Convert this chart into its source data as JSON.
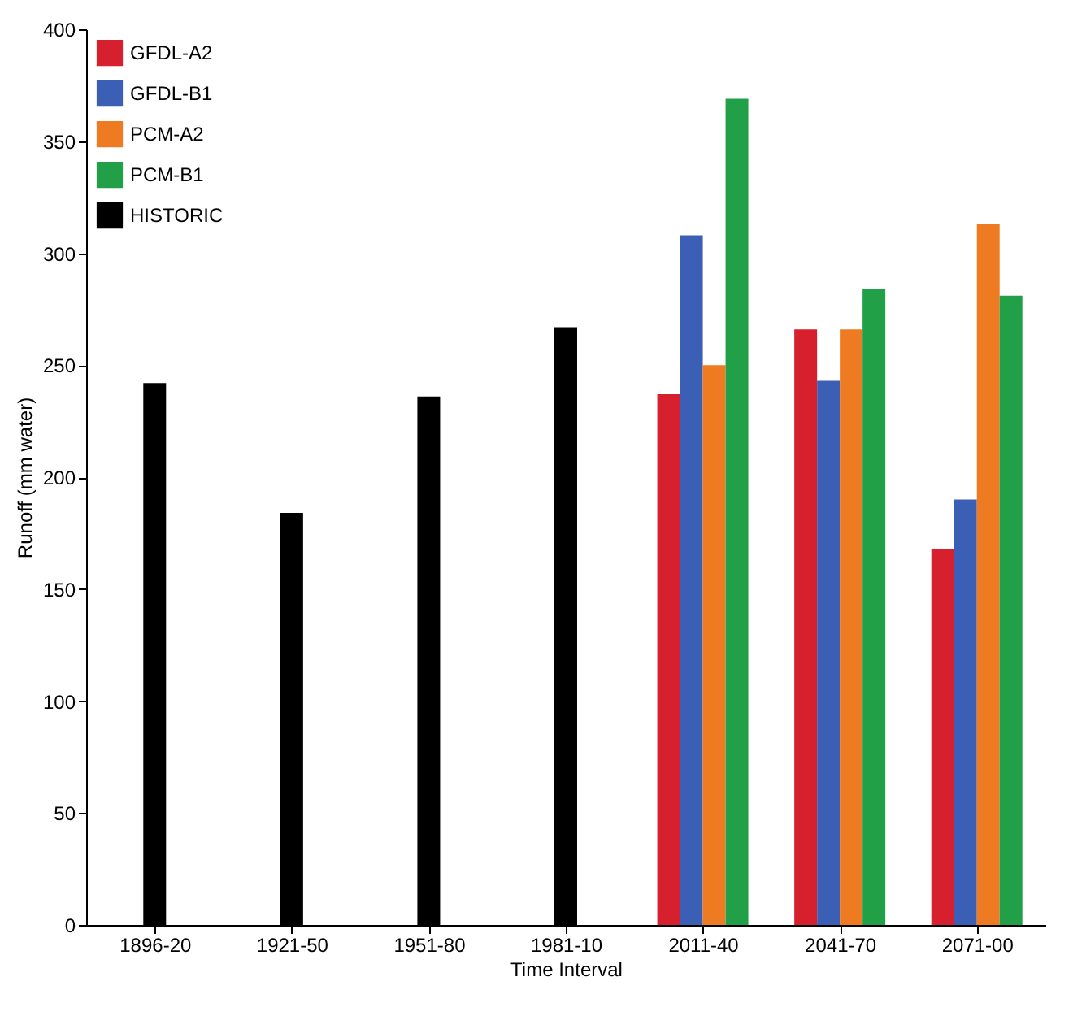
{
  "chart_data": {
    "type": "bar",
    "xlabel": "Time Interval",
    "ylabel": "Runoff (mm water)",
    "categories": [
      "1896-20",
      "1921-50",
      "1951-80",
      "1981-10",
      "2011-40",
      "2041-70",
      "2071-00"
    ],
    "series": [
      {
        "name": "GFDL-A2",
        "color": "#d7202e",
        "values": [
          null,
          null,
          null,
          null,
          237,
          266,
          168
        ]
      },
      {
        "name": "GFDL-B1",
        "color": "#3a5fb4",
        "values": [
          null,
          null,
          null,
          null,
          308,
          243,
          190
        ]
      },
      {
        "name": "PCM-A2",
        "color": "#ee7b22",
        "values": [
          null,
          null,
          null,
          null,
          250,
          266,
          313
        ]
      },
      {
        "name": "PCM-B1",
        "color": "#21a048",
        "values": [
          null,
          null,
          null,
          null,
          369,
          284,
          281
        ]
      },
      {
        "name": "HISTORIC",
        "color": "#000000",
        "values": [
          242,
          184,
          236,
          267,
          null,
          null,
          null
        ]
      }
    ],
    "ylim": [
      0,
      400
    ],
    "yticks": [
      0,
      50,
      100,
      150,
      200,
      250,
      300,
      350,
      400
    ],
    "grid": false,
    "legend": "top left"
  }
}
